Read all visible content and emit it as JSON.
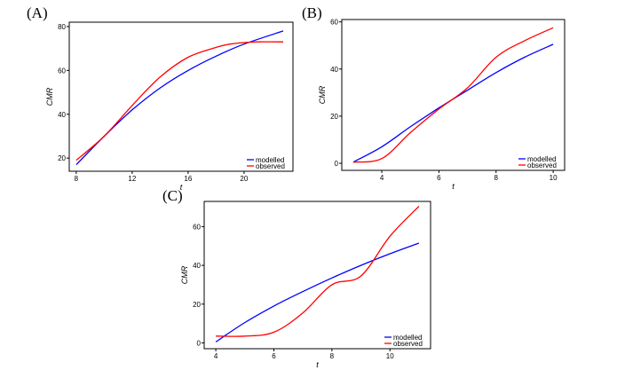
{
  "chart_data": [
    {
      "panel": "(A)",
      "type": "line",
      "xlabel": "t",
      "ylabel": "CMR",
      "xlim": [
        7.5,
        23.5
      ],
      "ylim": [
        14,
        82
      ],
      "xticks": [
        8,
        12,
        16,
        20
      ],
      "yticks": [
        20,
        40,
        60,
        80
      ],
      "legend_position": "bottom-right",
      "series": [
        {
          "name": "modelled",
          "color": "#0000ff",
          "x": [
            8,
            10,
            12,
            14,
            16,
            18,
            20,
            22.8
          ],
          "y": [
            17,
            30,
            42,
            52,
            60,
            66.5,
            72,
            78
          ]
        },
        {
          "name": "observed",
          "color": "#ff0000",
          "x": [
            8,
            10,
            12,
            14,
            16,
            18,
            19,
            20,
            21,
            22.8
          ],
          "y": [
            19,
            30,
            44,
            57,
            66,
            70.5,
            72,
            72.7,
            73,
            73
          ]
        }
      ]
    },
    {
      "panel": "(B)",
      "type": "line",
      "xlabel": "t",
      "ylabel": "CMR",
      "xlim": [
        2.6,
        10.4
      ],
      "ylim": [
        -3,
        61
      ],
      "xticks": [
        4,
        6,
        8,
        10
      ],
      "yticks": [
        0,
        20,
        40,
        60
      ],
      "legend_position": "bottom-right",
      "series": [
        {
          "name": "modelled",
          "color": "#0000ff",
          "x": [
            3,
            4,
            5,
            6,
            7,
            8,
            9,
            10
          ],
          "y": [
            0.5,
            7,
            15.5,
            23.5,
            31,
            38.5,
            45,
            50.5
          ]
        },
        {
          "name": "observed",
          "color": "#ff0000",
          "x": [
            3,
            4,
            5,
            6,
            7,
            8,
            9,
            10
          ],
          "y": [
            0.5,
            2,
            13,
            23,
            32,
            45,
            52,
            57.5
          ]
        }
      ]
    },
    {
      "panel": "(C)",
      "type": "line",
      "xlabel": "t",
      "ylabel": "CMR",
      "xlim": [
        3.6,
        11.4
      ],
      "ylim": [
        -3,
        73
      ],
      "xticks": [
        4,
        6,
        8,
        10
      ],
      "yticks": [
        0,
        20,
        40,
        60
      ],
      "legend_position": "bottom-right",
      "series": [
        {
          "name": "modelled",
          "color": "#0000ff",
          "x": [
            4,
            5,
            6,
            7,
            8,
            9,
            10,
            11
          ],
          "y": [
            0.5,
            10.5,
            19,
            26.5,
            33.5,
            40,
            46,
            51.5
          ]
        },
        {
          "name": "observed",
          "color": "#ff0000",
          "x": [
            4,
            5,
            6,
            7,
            8,
            9,
            10,
            11
          ],
          "y": [
            3.5,
            3.5,
            5.5,
            15.5,
            30,
            34.5,
            55,
            70.5
          ]
        }
      ]
    }
  ]
}
